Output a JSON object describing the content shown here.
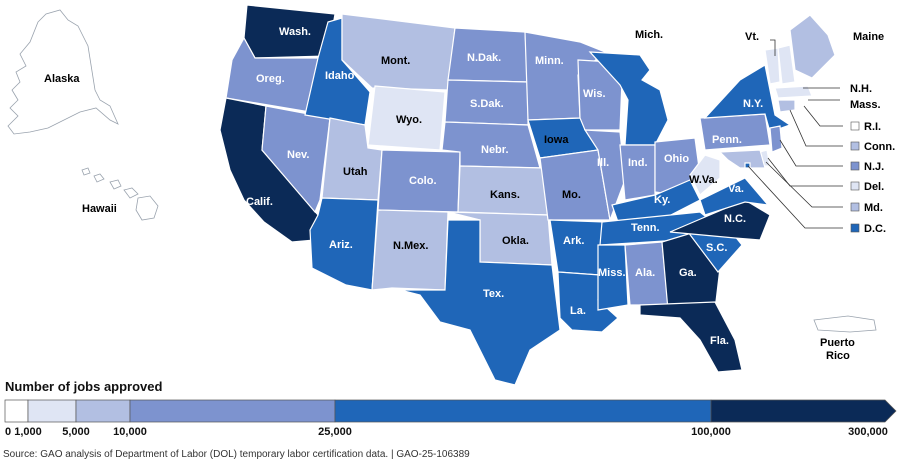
{
  "colors": {
    "c0": "#ffffff",
    "c1": "#dfe5f4",
    "c2": "#b2bfe2",
    "c3": "#7d93cf",
    "c4": "#1f66b8",
    "c5": "#0b2a57",
    "border": "#ffffff",
    "outline": "#9aa3ae"
  },
  "legend": {
    "title": "Number of jobs approved",
    "ticks": [
      "0",
      "1,000",
      "5,000",
      "10,000",
      "25,000",
      "100,000",
      "300,000"
    ]
  },
  "source": "Source: GAO analysis of Department of Labor (DOL) temporary labor certification data.  |  GAO-25-106389",
  "labels": {
    "alaska": "Alaska",
    "hawaii": "Hawaii",
    "puerto_rico": "Puerto Rico",
    "wash": "Wash.",
    "oreg": "Oreg.",
    "calif": "Calif.",
    "nev": "Nev.",
    "idaho": "Idaho",
    "mont": "Mont.",
    "wyo": "Wyo.",
    "utah": "Utah",
    "ariz": "Ariz.",
    "colo": "Colo.",
    "nmex": "N.Mex.",
    "ndak": "N.Dak.",
    "sdak": "S.Dak.",
    "nebr": "Nebr.",
    "kans": "Kans.",
    "okla": "Okla.",
    "tex": "Tex.",
    "minn": "Minn.",
    "iowa": "Iowa",
    "mo": "Mo.",
    "ark": "Ark.",
    "la": "La.",
    "wis": "Wis.",
    "ill": "Ill.",
    "mich": "Mich.",
    "ind": "Ind.",
    "ohio": "Ohio",
    "ky": "Ky.",
    "tenn": "Tenn.",
    "miss": "Miss.",
    "ala": "Ala.",
    "ga": "Ga.",
    "fla": "Fla.",
    "sc": "S.C.",
    "nc": "N.C.",
    "va": "Va.",
    "wva": "W.Va.",
    "penn": "Penn.",
    "ny": "N.Y.",
    "vt": "Vt.",
    "maine": "Maine",
    "nh": "N.H.",
    "mass": "Mass.",
    "ri": "R.I.",
    "conn": "Conn.",
    "nj": "N.J.",
    "del": "Del.",
    "md": "Md.",
    "dc": "D.C."
  },
  "state_bins": {
    "Alaska": 0,
    "Hawaii": 0,
    "Puerto Rico": 0,
    "Wash.": 5,
    "Oreg.": 3,
    "Calif.": 5,
    "Nev.": 3,
    "Idaho": 4,
    "Mont.": 2,
    "Wyo.": 1,
    "Utah": 2,
    "Ariz.": 4,
    "Colo.": 3,
    "N.Mex.": 2,
    "N.Dak.": 3,
    "S.Dak.": 3,
    "Nebr.": 3,
    "Kans.": 2,
    "Okla.": 2,
    "Tex.": 4,
    "Minn.": 3,
    "Iowa": 4,
    "Mo.": 3,
    "Ark.": 4,
    "La.": 4,
    "Wis.": 3,
    "Ill.": 3,
    "Mich.": 4,
    "Ind.": 3,
    "Ohio": 3,
    "Ky.": 4,
    "Tenn.": 4,
    "Miss.": 4,
    "Ala.": 3,
    "Ga.": 5,
    "Fla.": 5,
    "S.C.": 4,
    "N.C.": 5,
    "Va.": 4,
    "W.Va.": 1,
    "Penn.": 3,
    "N.Y.": 4,
    "Vt.": 1,
    "Maine": 2,
    "N.H.": 1,
    "Mass.": 1,
    "R.I.": 0,
    "Conn.": 2,
    "N.J.": 3,
    "Del.": 1,
    "Md.": 2,
    "D.C.": 4
  }
}
